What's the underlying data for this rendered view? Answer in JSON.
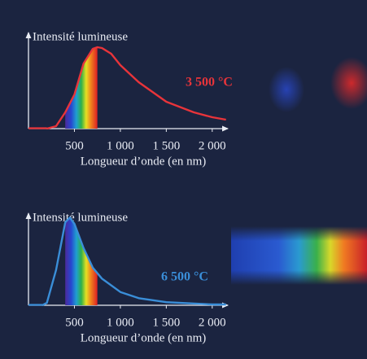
{
  "chart_data": [
    {
      "type": "line",
      "ylabel": "Intensité lumineuse",
      "xlabel": "Longueur d’onde (en nm)",
      "annotation": "3 500 °C",
      "color": "#e8343a",
      "x": [
        200,
        300,
        400,
        500,
        600,
        700,
        750,
        800,
        900,
        1000,
        1200,
        1500,
        1800,
        2000,
        2150
      ],
      "values": [
        0,
        3,
        20,
        42,
        80,
        98,
        100,
        99,
        92,
        78,
        57,
        33,
        20,
        14,
        11
      ],
      "xlim": [
        0,
        2170
      ],
      "ylim": [
        0,
        130
      ],
      "xticks": [
        500,
        {
          "value": 1000,
          "label": "1 000"
        },
        {
          "value": 1500,
          "label": "1 500"
        },
        {
          "value": 2000,
          "label": "2 000"
        }
      ]
    },
    {
      "type": "line",
      "ylabel": "Intensité lumineuse",
      "xlabel": "Longueur d’onde (en nm)",
      "annotation": "6 500 °C",
      "color": "#3a8ed8",
      "x": [
        150,
        200,
        300,
        400,
        450,
        500,
        600,
        700,
        800,
        1000,
        1200,
        1500,
        2000,
        2150
      ],
      "values": [
        0,
        3,
        45,
        106,
        112,
        104,
        73,
        48,
        34,
        17,
        9,
        4,
        1,
        1
      ],
      "xlim": [
        0,
        2170
      ],
      "ylim": [
        0,
        130
      ],
      "xticks": [
        500,
        {
          "value": 1000,
          "label": "1 000"
        },
        {
          "value": 1500,
          "label": "1 500"
        },
        {
          "value": 2000,
          "label": "2 000"
        }
      ]
    }
  ]
}
